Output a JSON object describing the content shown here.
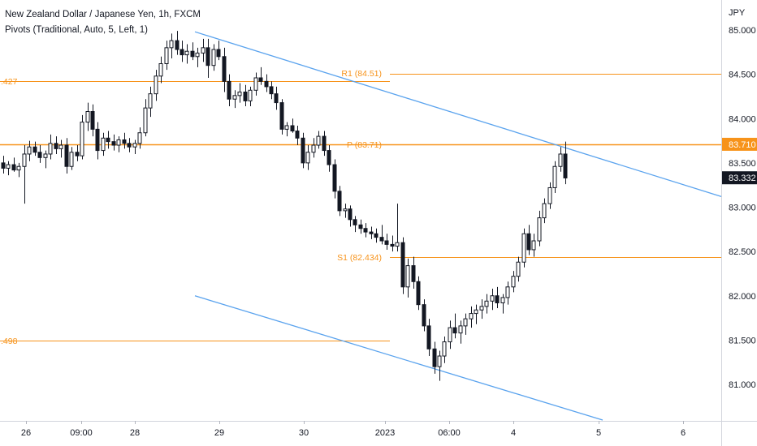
{
  "legend": {
    "symbol": "New Zealand Dollar / Japanese Yen, 1h, FXCM",
    "indicator": "Pivots (Traditional, Auto, 5, Left, 1)"
  },
  "colors": {
    "pivot": "#f7931a",
    "trendline": "#5aa3ee",
    "candle_body": "#131722",
    "background": "#ffffff",
    "price_tag_bg": "#131722",
    "price_tag_text": "#ffffff"
  },
  "chart_data": {
    "type": "candlestick",
    "currency_label": "JPY",
    "y_ticks": [
      85.0,
      84.5,
      84.0,
      83.5,
      83.0,
      82.5,
      82.0,
      81.5,
      81.0
    ],
    "y_tick_labels": [
      "85.000",
      "84.500",
      "84.000",
      "83.500",
      "83.000",
      "82.500",
      "82.000",
      "81.500",
      "81.000"
    ],
    "ylim": [
      80.5,
      85.2
    ],
    "x_ticks": [
      "26",
      "09:00",
      "28",
      "29",
      "30",
      "2023",
      "06:00",
      "4",
      "5",
      "6"
    ],
    "pivot_levels": [
      {
        "name": "R1",
        "value": 84.51,
        "label": "R1 (84.51)",
        "cut_label": ".427",
        "cut_value": 84.427
      },
      {
        "name": "P",
        "value": 83.71,
        "label": "P (83.71)"
      },
      {
        "name": "S1",
        "value": 82.434,
        "label": "S1 (82.434)"
      },
      {
        "name": "S1_prev",
        "value": 81.498,
        "cut_label": ".498"
      }
    ],
    "price_tags": [
      {
        "label": "83.710",
        "value": 83.71,
        "kind": "pivot"
      },
      {
        "label": "83.332",
        "value": 83.332,
        "kind": "last"
      }
    ],
    "trendlines": [
      {
        "start": {
          "bar": 0,
          "price": 84.98
        },
        "end": {
          "bar": 1,
          "price": 83.12
        }
      },
      {
        "start": {
          "bar": 0,
          "price": 82.0
        },
        "end": {
          "bar": 1,
          "price": 80.42
        }
      }
    ],
    "candles": [
      [
        83.5,
        83.58,
        83.38,
        83.44
      ],
      [
        83.44,
        83.52,
        83.36,
        83.48
      ],
      [
        83.48,
        83.56,
        83.4,
        83.42
      ],
      [
        83.42,
        83.5,
        83.34,
        83.46
      ],
      [
        83.46,
        83.7,
        83.04,
        83.6
      ],
      [
        83.6,
        83.75,
        83.52,
        83.68
      ],
      [
        83.68,
        83.74,
        83.58,
        83.62
      ],
      [
        83.62,
        83.7,
        83.5,
        83.56
      ],
      [
        83.56,
        83.64,
        83.44,
        83.6
      ],
      [
        83.6,
        83.82,
        83.54,
        83.72
      ],
      [
        83.72,
        83.8,
        83.6,
        83.66
      ],
      [
        83.66,
        83.76,
        83.56,
        83.7
      ],
      [
        83.7,
        83.78,
        83.38,
        83.46
      ],
      [
        83.46,
        83.68,
        83.42,
        83.62
      ],
      [
        83.62,
        83.7,
        83.52,
        83.58
      ],
      [
        83.58,
        84.04,
        83.54,
        83.96
      ],
      [
        83.96,
        84.18,
        83.86,
        84.08
      ],
      [
        84.08,
        84.16,
        83.8,
        83.88
      ],
      [
        83.88,
        83.96,
        83.54,
        83.64
      ],
      [
        83.64,
        83.84,
        83.58,
        83.78
      ],
      [
        83.78,
        83.86,
        83.66,
        83.74
      ],
      [
        83.74,
        83.82,
        83.64,
        83.7
      ],
      [
        83.7,
        83.8,
        83.62,
        83.76
      ],
      [
        83.76,
        83.84,
        83.66,
        83.72
      ],
      [
        83.72,
        83.78,
        83.62,
        83.68
      ],
      [
        83.68,
        83.76,
        83.6,
        83.72
      ],
      [
        83.72,
        83.9,
        83.66,
        83.84
      ],
      [
        83.84,
        84.22,
        83.8,
        84.12
      ],
      [
        84.12,
        84.36,
        84.02,
        84.28
      ],
      [
        84.28,
        84.55,
        84.2,
        84.48
      ],
      [
        84.48,
        84.7,
        84.4,
        84.62
      ],
      [
        84.62,
        84.88,
        84.55,
        84.8
      ],
      [
        84.8,
        84.96,
        84.68,
        84.88
      ],
      [
        84.88,
        84.99,
        84.72,
        84.78
      ],
      [
        84.78,
        84.88,
        84.64,
        84.72
      ],
      [
        84.72,
        84.84,
        84.62,
        84.76
      ],
      [
        84.76,
        84.86,
        84.66,
        84.7
      ],
      [
        84.7,
        84.8,
        84.58,
        84.74
      ],
      [
        84.74,
        84.9,
        84.64,
        84.8
      ],
      [
        84.8,
        84.9,
        84.46,
        84.6
      ],
      [
        84.6,
        84.84,
        84.54,
        84.78
      ],
      [
        84.78,
        84.88,
        84.66,
        84.7
      ],
      [
        84.7,
        84.8,
        84.3,
        84.42
      ],
      [
        84.42,
        84.5,
        84.14,
        84.22
      ],
      [
        84.22,
        84.32,
        84.12,
        84.26
      ],
      [
        84.26,
        84.4,
        84.18,
        84.3
      ],
      [
        84.3,
        84.38,
        84.14,
        84.2
      ],
      [
        84.2,
        84.36,
        84.14,
        84.32
      ],
      [
        84.32,
        84.52,
        84.26,
        84.46
      ],
      [
        84.46,
        84.58,
        84.38,
        84.42
      ],
      [
        84.42,
        84.5,
        84.3,
        84.36
      ],
      [
        84.36,
        84.42,
        84.22,
        84.28
      ],
      [
        84.28,
        84.36,
        84.1,
        84.18
      ],
      [
        84.18,
        84.22,
        83.82,
        83.88
      ],
      [
        83.88,
        83.96,
        83.8,
        83.92
      ],
      [
        83.92,
        84.0,
        83.84,
        83.86
      ],
      [
        83.86,
        83.92,
        83.7,
        83.78
      ],
      [
        83.78,
        83.84,
        83.44,
        83.5
      ],
      [
        83.5,
        83.7,
        83.42,
        83.62
      ],
      [
        83.62,
        83.78,
        83.56,
        83.7
      ],
      [
        83.7,
        83.86,
        83.66,
        83.8
      ],
      [
        83.8,
        83.86,
        83.58,
        83.64
      ],
      [
        83.64,
        83.7,
        83.4,
        83.48
      ],
      [
        83.48,
        83.54,
        83.1,
        83.18
      ],
      [
        83.18,
        83.24,
        82.9,
        82.96
      ],
      [
        82.96,
        83.04,
        82.88,
        82.98
      ],
      [
        82.98,
        83.02,
        82.78,
        82.86
      ],
      [
        82.86,
        82.9,
        82.72,
        82.8
      ],
      [
        82.8,
        82.86,
        82.7,
        82.76
      ],
      [
        82.76,
        82.82,
        82.66,
        82.72
      ],
      [
        82.72,
        82.78,
        82.64,
        82.7
      ],
      [
        82.7,
        82.76,
        82.6,
        82.66
      ],
      [
        82.66,
        82.8,
        82.58,
        82.62
      ],
      [
        82.62,
        82.7,
        82.52,
        82.58
      ],
      [
        82.58,
        82.68,
        82.5,
        82.56
      ],
      [
        82.56,
        83.04,
        82.5,
        82.6
      ],
      [
        82.6,
        82.66,
        82.02,
        82.1
      ],
      [
        82.1,
        82.42,
        81.98,
        82.34
      ],
      [
        82.34,
        82.44,
        82.08,
        82.16
      ],
      [
        82.16,
        82.22,
        81.84,
        81.9
      ],
      [
        81.9,
        81.96,
        81.6,
        81.66
      ],
      [
        81.66,
        81.74,
        81.32,
        81.4
      ],
      [
        81.4,
        81.48,
        81.12,
        81.2
      ],
      [
        81.2,
        81.38,
        81.04,
        81.32
      ],
      [
        81.32,
        81.54,
        81.24,
        81.48
      ],
      [
        81.48,
        81.72,
        81.4,
        81.64
      ],
      [
        81.64,
        81.8,
        81.52,
        81.58
      ],
      [
        81.58,
        81.72,
        81.46,
        81.66
      ],
      [
        81.66,
        81.8,
        81.56,
        81.74
      ],
      [
        81.74,
        81.88,
        81.64,
        81.8
      ],
      [
        81.8,
        81.9,
        81.68,
        81.84
      ],
      [
        81.84,
        81.96,
        81.74,
        81.88
      ],
      [
        81.88,
        82.02,
        81.8,
        81.94
      ],
      [
        81.94,
        82.08,
        81.84,
        82.0
      ],
      [
        82.0,
        82.1,
        81.86,
        81.92
      ],
      [
        81.92,
        82.02,
        81.8,
        81.98
      ],
      [
        81.98,
        82.16,
        81.9,
        82.1
      ],
      [
        82.1,
        82.28,
        82.04,
        82.22
      ],
      [
        82.22,
        82.44,
        82.16,
        82.38
      ],
      [
        82.38,
        82.76,
        82.32,
        82.7
      ],
      [
        82.7,
        82.8,
        82.46,
        82.52
      ],
      [
        82.52,
        82.7,
        82.44,
        82.62
      ],
      [
        82.62,
        82.96,
        82.56,
        82.88
      ],
      [
        82.88,
        83.1,
        82.82,
        83.04
      ],
      [
        83.04,
        83.28,
        82.98,
        83.22
      ],
      [
        83.22,
        83.52,
        83.16,
        83.46
      ],
      [
        83.46,
        83.68,
        83.4,
        83.6
      ],
      [
        83.6,
        83.74,
        83.26,
        83.33
      ]
    ]
  }
}
